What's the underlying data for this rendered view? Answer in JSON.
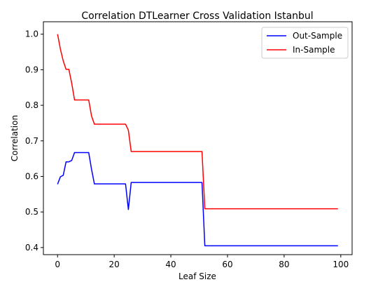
{
  "chart_data": {
    "type": "line",
    "title": "Correlation DTLearner Cross Validation Istanbul",
    "xlabel": "Leaf Size",
    "ylabel": "Correlation",
    "xlim": [
      -5,
      104
    ],
    "ylim": [
      0.38,
      1.035
    ],
    "xticks": [
      0,
      20,
      40,
      60,
      80,
      100
    ],
    "yticks": [
      0.4,
      0.5,
      0.6,
      0.7,
      0.8,
      0.9,
      1.0
    ],
    "ytick_labels": [
      "0.4",
      "0.5",
      "0.6",
      "0.7",
      "0.8",
      "0.9",
      "1.0"
    ],
    "grid": false,
    "legend": "top-right",
    "series": [
      {
        "name": "Out-Sample",
        "color": "#0000ff",
        "points": [
          [
            0,
            0.578
          ],
          [
            1,
            0.599
          ],
          [
            2,
            0.603
          ],
          [
            3,
            0.641
          ],
          [
            4,
            0.641
          ],
          [
            5,
            0.645
          ],
          [
            6,
            0.667
          ],
          [
            7,
            0.667
          ],
          [
            8,
            0.667
          ],
          [
            9,
            0.667
          ],
          [
            10,
            0.667
          ],
          [
            11,
            0.667
          ],
          [
            12,
            0.62
          ],
          [
            13,
            0.579
          ],
          [
            14,
            0.579
          ],
          [
            15,
            0.579
          ],
          [
            16,
            0.579
          ],
          [
            17,
            0.579
          ],
          [
            18,
            0.579
          ],
          [
            19,
            0.579
          ],
          [
            20,
            0.579
          ],
          [
            21,
            0.579
          ],
          [
            22,
            0.579
          ],
          [
            23,
            0.579
          ],
          [
            24,
            0.579
          ],
          [
            25,
            0.507
          ],
          [
            26,
            0.583
          ],
          [
            27,
            0.583
          ],
          [
            30,
            0.583
          ],
          [
            35,
            0.583
          ],
          [
            40,
            0.583
          ],
          [
            45,
            0.583
          ],
          [
            50,
            0.583
          ],
          [
            51,
            0.583
          ],
          [
            52,
            0.405
          ],
          [
            55,
            0.405
          ],
          [
            60,
            0.405
          ],
          [
            70,
            0.405
          ],
          [
            80,
            0.405
          ],
          [
            90,
            0.405
          ],
          [
            99,
            0.405
          ]
        ]
      },
      {
        "name": "In-Sample",
        "color": "#ff0000",
        "points": [
          [
            0,
            1.0
          ],
          [
            1,
            0.958
          ],
          [
            2,
            0.925
          ],
          [
            3,
            0.901
          ],
          [
            4,
            0.901
          ],
          [
            5,
            0.862
          ],
          [
            6,
            0.815
          ],
          [
            7,
            0.815
          ],
          [
            8,
            0.815
          ],
          [
            9,
            0.815
          ],
          [
            10,
            0.815
          ],
          [
            11,
            0.815
          ],
          [
            12,
            0.77
          ],
          [
            13,
            0.747
          ],
          [
            14,
            0.747
          ],
          [
            15,
            0.747
          ],
          [
            16,
            0.747
          ],
          [
            17,
            0.747
          ],
          [
            18,
            0.747
          ],
          [
            19,
            0.747
          ],
          [
            20,
            0.747
          ],
          [
            21,
            0.747
          ],
          [
            22,
            0.747
          ],
          [
            23,
            0.747
          ],
          [
            24,
            0.747
          ],
          [
            25,
            0.73
          ],
          [
            26,
            0.67
          ],
          [
            27,
            0.67
          ],
          [
            30,
            0.67
          ],
          [
            35,
            0.67
          ],
          [
            40,
            0.67
          ],
          [
            45,
            0.67
          ],
          [
            50,
            0.67
          ],
          [
            51,
            0.67
          ],
          [
            52,
            0.509
          ],
          [
            55,
            0.509
          ],
          [
            60,
            0.509
          ],
          [
            70,
            0.509
          ],
          [
            80,
            0.509
          ],
          [
            90,
            0.509
          ],
          [
            99,
            0.509
          ]
        ]
      }
    ]
  }
}
